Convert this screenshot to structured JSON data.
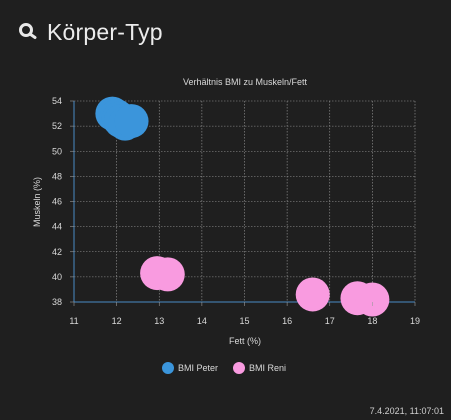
{
  "header": {
    "title": "Körper-Typ",
    "icon": "magnifier-icon"
  },
  "footer": {
    "timestamp": "7.4.2021, 11:07:01"
  },
  "colors": {
    "peter": "#3b95db",
    "reni": "#f99be0",
    "grid": "#9a9a9a",
    "axis": "#4a8bc4",
    "text": "#d9d9d9"
  },
  "chart_data": {
    "type": "scatter",
    "title": "Verhältnis BMI zu Muskeln/Fett",
    "xlabel": "Fett (%)",
    "ylabel": "Muskeln (%)",
    "xlim": [
      11,
      19
    ],
    "ylim": [
      38,
      54
    ],
    "xticks": [
      11,
      12,
      13,
      14,
      15,
      16,
      17,
      18,
      19
    ],
    "yticks": [
      38,
      40,
      42,
      44,
      46,
      48,
      50,
      52,
      54
    ],
    "grid": true,
    "legend_position": "bottom",
    "series": [
      {
        "name": "BMI Peter",
        "color": "#3b95db",
        "points": [
          {
            "x": 11.9,
            "y": 53.0
          },
          {
            "x": 12.0,
            "y": 52.8
          },
          {
            "x": 12.05,
            "y": 52.6
          },
          {
            "x": 12.1,
            "y": 52.4
          },
          {
            "x": 12.2,
            "y": 52.2
          },
          {
            "x": 12.35,
            "y": 52.4
          }
        ]
      },
      {
        "name": "BMI Reni",
        "color": "#f99be0",
        "points": [
          {
            "x": 12.95,
            "y": 40.3
          },
          {
            "x": 13.2,
            "y": 40.2
          },
          {
            "x": 16.6,
            "y": 38.6
          },
          {
            "x": 17.65,
            "y": 38.3
          },
          {
            "x": 18.0,
            "y": 38.2
          }
        ]
      }
    ]
  }
}
